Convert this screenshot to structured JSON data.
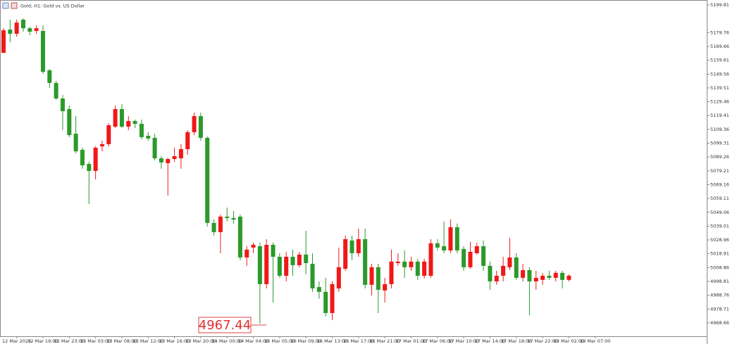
{
  "chart_data": {
    "type": "candlestick",
    "title": "Gold, H1:  Gold vs. US Dollar",
    "up_color": "#f01818",
    "down_color": "#2a9a2a",
    "ylim": [
      4958.9,
      5201.9
    ],
    "yticks": [
      5199.81,
      5179.76,
      5169.66,
      5159.61,
      5149.56,
      5139.51,
      5129.46,
      5119.41,
      5109.36,
      5099.31,
      5089.26,
      5079.21,
      5069.16,
      5059.11,
      5049.06,
      5039.01,
      5028.96,
      5018.91,
      5008.86,
      4998.81,
      4988.76,
      4978.71,
      4968.66
    ],
    "x_labels": [
      "12 Mar 2026",
      "12 Mar 19:00",
      "12 Mar 23:00",
      "13 Mar 03:00",
      "13 Mar 08:00",
      "13 Mar 12:00",
      "13 Mar 16:00",
      "13 Mar 20:00",
      "14 Mar 00:00",
      "14 Mar 04:00",
      "16 Mar 05:00",
      "16 Mar 09:00",
      "16 Mar 13:00",
      "16 Mar 17:00",
      "16 Mar 21:00",
      "17 Mar 01:00",
      "17 Mar 06:00",
      "17 Mar 10:00",
      "17 Mar 14:00",
      "17 Mar 18:00",
      "17 Mar 22:00",
      "18 Mar 02:00",
      "18 Mar 07:00"
    ],
    "price_marker": "4967.44",
    "ohlc": [
      [
        5165.0,
        5182.9,
        5165.0,
        5181.4
      ],
      [
        5181.9,
        5189.1,
        5172.7,
        5178.9
      ],
      [
        5178.9,
        5189.1,
        5176.8,
        5187.0
      ],
      [
        5189.1,
        5190.1,
        5180.4,
        5182.9
      ],
      [
        5182.9,
        5184.0,
        5177.8,
        5180.4
      ],
      [
        5180.9,
        5185.0,
        5178.9,
        5182.9
      ],
      [
        5180.9,
        5185.0,
        5149.7,
        5151.2
      ],
      [
        5152.3,
        5153.3,
        5139.5,
        5143.1
      ],
      [
        5143.1,
        5144.6,
        5130.8,
        5131.8
      ],
      [
        5131.8,
        5134.4,
        5108.8,
        5122.6
      ],
      [
        5124.1,
        5126.7,
        5103.7,
        5105.2
      ],
      [
        5106.2,
        5119.0,
        5091.9,
        5093.4
      ],
      [
        5094.5,
        5096.0,
        5080.7,
        5083.2
      ],
      [
        5084.2,
        5085.8,
        5055.1,
        5079.1
      ],
      [
        5079.1,
        5097.0,
        5073.0,
        5096.0
      ],
      [
        5097.0,
        5101.1,
        5093.4,
        5098.6
      ],
      [
        5098.6,
        5113.9,
        5097.0,
        5112.4
      ],
      [
        5111.3,
        5126.7,
        5110.3,
        5124.1
      ],
      [
        5124.1,
        5127.7,
        5110.3,
        5111.3
      ],
      [
        5111.3,
        5119.0,
        5108.8,
        5115.4
      ],
      [
        5115.4,
        5116.5,
        5110.3,
        5113.4
      ],
      [
        5113.4,
        5116.5,
        5102.1,
        5103.7
      ],
      [
        5104.7,
        5107.3,
        5101.1,
        5102.7
      ],
      [
        5103.2,
        5106.2,
        5086.8,
        5088.3
      ],
      [
        5088.3,
        5089.9,
        5080.7,
        5085.3
      ],
      [
        5084.8,
        5088.8,
        5061.2,
        5087.8
      ],
      [
        5087.8,
        5096.0,
        5085.8,
        5089.9
      ],
      [
        5088.3,
        5098.6,
        5080.7,
        5095.0
      ],
      [
        5095.0,
        5108.8,
        5090.9,
        5107.3
      ],
      [
        5107.3,
        5121.6,
        5105.2,
        5119.0
      ],
      [
        5119.0,
        5121.6,
        5101.1,
        5103.2
      ],
      [
        5103.2,
        5104.2,
        5038.7,
        5041.3
      ],
      [
        5041.3,
        5043.8,
        5032.1,
        5034.6
      ],
      [
        5034.6,
        5047.4,
        5019.3,
        5045.9
      ],
      [
        5045.9,
        5052.5,
        5042.3,
        5044.9
      ],
      [
        5044.9,
        5050.0,
        5040.8,
        5043.8
      ],
      [
        5045.9,
        5047.4,
        5014.2,
        5016.2
      ],
      [
        5016.2,
        5024.4,
        5010.1,
        5021.9
      ],
      [
        5023.4,
        5027.0,
        5019.3,
        5025.4
      ],
      [
        5024.4,
        5027.0,
        4968.2,
        4996.8
      ],
      [
        4996.8,
        5029.5,
        4993.7,
        5025.4
      ],
      [
        5025.4,
        5027.0,
        4983.5,
        5016.7
      ],
      [
        5016.7,
        5019.3,
        5001.4,
        5002.9
      ],
      [
        5002.9,
        5020.3,
        4998.8,
        5016.7
      ],
      [
        5016.7,
        5021.9,
        5002.9,
        5010.6
      ],
      [
        5010.6,
        5020.3,
        5009.1,
        5018.3
      ],
      [
        5018.3,
        5035.7,
        5004.0,
        5012.1
      ],
      [
        5011.6,
        5019.3,
        4991.2,
        4993.7
      ],
      [
        4994.7,
        4998.8,
        4986.1,
        4991.2
      ],
      [
        4991.2,
        5001.4,
        4973.3,
        4975.8
      ],
      [
        4975.8,
        4998.8,
        4970.7,
        4996.8
      ],
      [
        4993.7,
        5023.4,
        4991.2,
        5009.1
      ],
      [
        5008.0,
        5032.1,
        5006.5,
        5029.5
      ],
      [
        5028.5,
        5032.1,
        5014.2,
        5019.3
      ],
      [
        5019.3,
        5037.2,
        5016.7,
        5029.5
      ],
      [
        5029.5,
        5037.2,
        4993.7,
        4996.3
      ],
      [
        4996.3,
        5011.6,
        4988.6,
        5009.1
      ],
      [
        5009.1,
        5011.6,
        4975.8,
        4992.7
      ],
      [
        4992.2,
        5001.4,
        4983.5,
        4996.8
      ],
      [
        4996.8,
        5021.9,
        4993.7,
        5013.2
      ],
      [
        5012.1,
        5019.3,
        5010.1,
        5013.2
      ],
      [
        5013.2,
        5021.3,
        5001.4,
        5009.1
      ],
      [
        5009.1,
        5016.7,
        5006.5,
        5013.2
      ],
      [
        5013.2,
        5015.2,
        4999.9,
        5002.9
      ],
      [
        5002.9,
        5015.2,
        5000.9,
        5013.2
      ],
      [
        5002.9,
        5029.5,
        5001.4,
        5026.5
      ],
      [
        5026.5,
        5029.5,
        5021.3,
        5023.4
      ],
      [
        5024.4,
        5042.3,
        5019.3,
        5021.3
      ],
      [
        5021.3,
        5043.8,
        5019.3,
        5038.2
      ],
      [
        5038.2,
        5040.8,
        5019.3,
        5021.3
      ],
      [
        5022.4,
        5024.4,
        5006.5,
        5009.1
      ],
      [
        5009.1,
        5027.5,
        5008.0,
        5020.3
      ],
      [
        5019.3,
        5027.0,
        5018.3,
        5024.4
      ],
      [
        5024.4,
        5028.5,
        5006.5,
        5010.1
      ],
      [
        5010.1,
        5013.2,
        4992.7,
        4998.8
      ],
      [
        4998.8,
        5006.5,
        4996.3,
        5002.9
      ],
      [
        5002.9,
        5016.7,
        4998.8,
        5010.1
      ],
      [
        5009.1,
        5030.5,
        5007.0,
        5016.2
      ],
      [
        5016.2,
        5019.3,
        4999.9,
        5001.4
      ],
      [
        5001.4,
        5011.6,
        4998.8,
        5007.0
      ],
      [
        5007.0,
        5009.1,
        4974.3,
        4998.8
      ],
      [
        4998.8,
        5006.5,
        4992.7,
        5001.4
      ],
      [
        4999.9,
        5005.0,
        4996.3,
        5002.9
      ],
      [
        5002.9,
        5006.5,
        4999.9,
        5001.4
      ],
      [
        5001.4,
        5006.5,
        4998.8,
        5005.0
      ],
      [
        5005.0,
        5006.5,
        4993.7,
        4999.9
      ],
      [
        4999.9,
        5004.0,
        4998.8,
        5002.9
      ]
    ]
  }
}
